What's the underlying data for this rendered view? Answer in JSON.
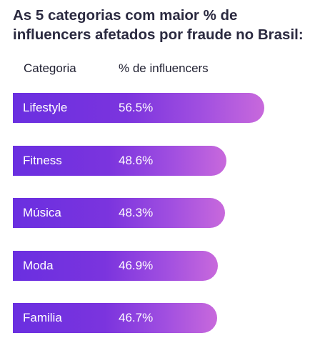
{
  "chart_data": {
    "type": "bar",
    "orientation": "horizontal",
    "title": "As 5 categorias com maior % de influencers afetados por fraude no Brasil:",
    "category_header": "Categoria",
    "value_header": "% de influencers",
    "categories": [
      "Lifestyle",
      "Fitness",
      "Música",
      "Moda",
      "Familia"
    ],
    "values": [
      56.5,
      48.6,
      48.3,
      46.9,
      46.7
    ],
    "value_labels": [
      "56.5%",
      "48.6%",
      "48.3%",
      "46.9%",
      "46.7%"
    ],
    "unit": "%",
    "legend": "none",
    "grid": false,
    "colors": {
      "bar_start": "#6a2fe0",
      "bar_end": "#c869dc",
      "label_text": "#ffffff",
      "title_text": "#2b2a40"
    }
  }
}
